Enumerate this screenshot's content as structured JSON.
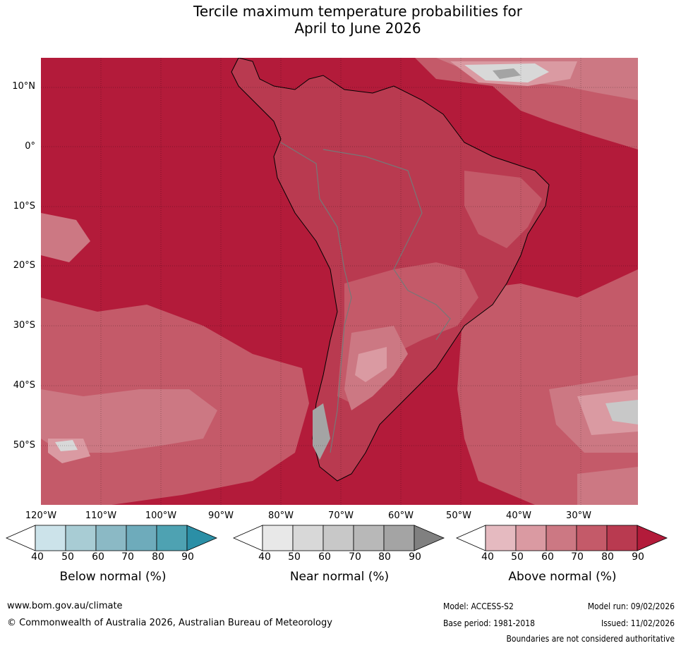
{
  "title": {
    "line1": "Tercile maximum temperature probabilities for",
    "line2": "April to June 2026"
  },
  "map": {
    "region": "South America",
    "lat_labels": [
      "10°N",
      "0°",
      "10°S",
      "20°S",
      "30°S",
      "40°S",
      "50°S"
    ],
    "lon_labels": [
      "120°W",
      "110°W",
      "100°W",
      "90°W",
      "80°W",
      "70°W",
      "60°W",
      "50°W",
      "40°W",
      "30°W"
    ],
    "background_color": "#b31b3a"
  },
  "legends": [
    {
      "title": "Below normal (%)",
      "ticks": [
        "40",
        "50",
        "60",
        "70",
        "80",
        "90"
      ],
      "colors": [
        "#ffffff",
        "#cce3ea",
        "#a8ccd4",
        "#8bb9c5",
        "#6eabbb",
        "#4ea2b2",
        "#2b8fa6"
      ]
    },
    {
      "title": "Near normal (%)",
      "ticks": [
        "40",
        "50",
        "60",
        "70",
        "80",
        "90"
      ],
      "colors": [
        "#ffffff",
        "#e8e8e8",
        "#d8d8d8",
        "#c8c8c8",
        "#b8b8b8",
        "#a4a4a4",
        "#808080"
      ]
    },
    {
      "title": "Above normal (%)",
      "ticks": [
        "40",
        "50",
        "60",
        "70",
        "80",
        "90"
      ],
      "colors": [
        "#ffffff",
        "#e5bac0",
        "#da9aa2",
        "#cc7883",
        "#c45a69",
        "#b93a50",
        "#b31b3a"
      ]
    }
  ],
  "footer": {
    "website": "www.bom.gov.au/climate",
    "copyright": "© Commonwealth of Australia 2026, Australian Bureau of Meteorology",
    "model": "Model: ACCESS-S2",
    "base_period": "Base period: 1981-2018",
    "model_run": "Model run: 09/02/2026",
    "issued": "Issued: 11/02/2026",
    "disclaimer": "Boundaries are not considered authoritative"
  }
}
